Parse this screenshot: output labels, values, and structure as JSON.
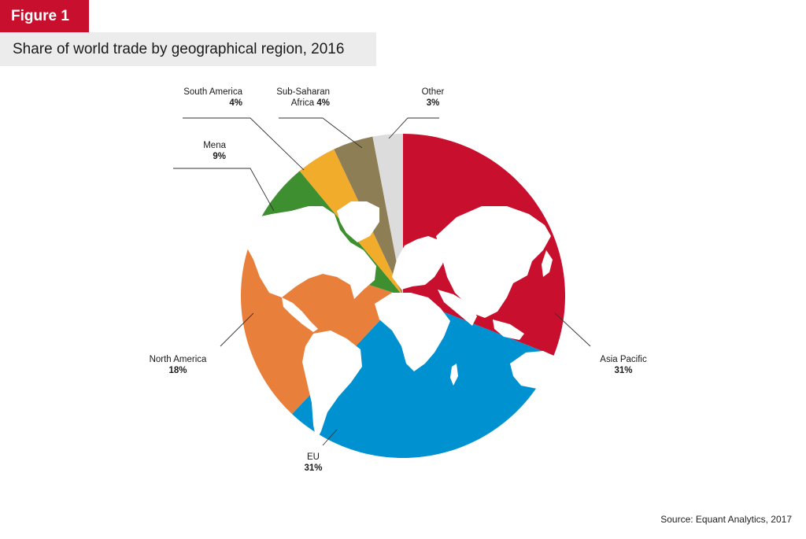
{
  "figure_label": "Figure 1",
  "title": "Share of world trade by geographical region, 2016",
  "source": "Source: Equant Analytics, 2017",
  "chart_data": {
    "type": "pie",
    "title": "Share of world trade by geographical region, 2016",
    "start": "12 o'clock, clockwise",
    "slices": [
      {
        "name": "Asia Pacific",
        "value": 31,
        "label": "31%",
        "color": "#c8102e"
      },
      {
        "name": "EU",
        "value": 31,
        "label": "31%",
        "color": "#0091d0"
      },
      {
        "name": "North America",
        "value": 18,
        "label": "18%",
        "color": "#e8803c"
      },
      {
        "name": "Mena",
        "value": 9,
        "label": "9%",
        "color": "#3e8f2f"
      },
      {
        "name": "South America",
        "value": 4,
        "label": "4%",
        "color": "#f0ac2a"
      },
      {
        "name": "Sub-Saharan Africa",
        "value": 4,
        "label": "4%",
        "color": "#8e7e55"
      },
      {
        "name": "Other",
        "value": 3,
        "label": "3%",
        "color": "#dcdcdc"
      }
    ],
    "background_image": "world-map-overlay"
  }
}
